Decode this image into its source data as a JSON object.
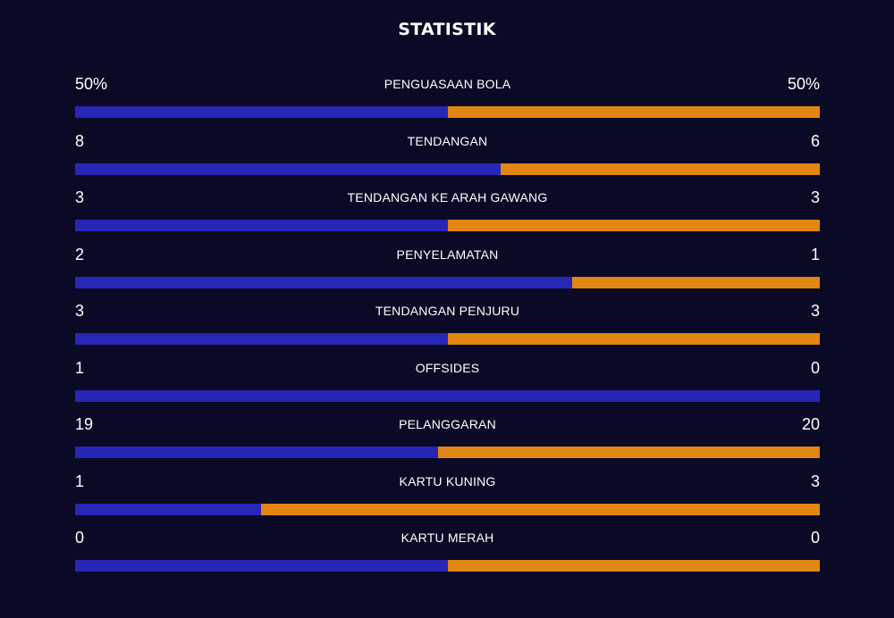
{
  "title": "STATISTIK",
  "colors": {
    "background": "#0b0a26",
    "home": "#2726b7",
    "away": "#e28613"
  },
  "stats": [
    {
      "label": "PENGUASAAN BOLA",
      "home": "50%",
      "away": "50%",
      "home_share": 0.5
    },
    {
      "label": "TENDANGAN",
      "home": "8",
      "away": "6",
      "home_share": 0.571
    },
    {
      "label": "TENDANGAN KE ARAH GAWANG",
      "home": "3",
      "away": "3",
      "home_share": 0.5
    },
    {
      "label": "PENYELAMATAN",
      "home": "2",
      "away": "1",
      "home_share": 0.667
    },
    {
      "label": "TENDANGAN PENJURU",
      "home": "3",
      "away": "3",
      "home_share": 0.5
    },
    {
      "label": "OFFSIDES",
      "home": "1",
      "away": "0",
      "home_share": 1.0
    },
    {
      "label": "PELANGGARAN",
      "home": "19",
      "away": "20",
      "home_share": 0.487
    },
    {
      "label": "KARTU KUNING",
      "home": "1",
      "away": "3",
      "home_share": 0.25
    },
    {
      "label": "KARTU MERAH",
      "home": "0",
      "away": "0",
      "home_share": 0.5
    }
  ]
}
